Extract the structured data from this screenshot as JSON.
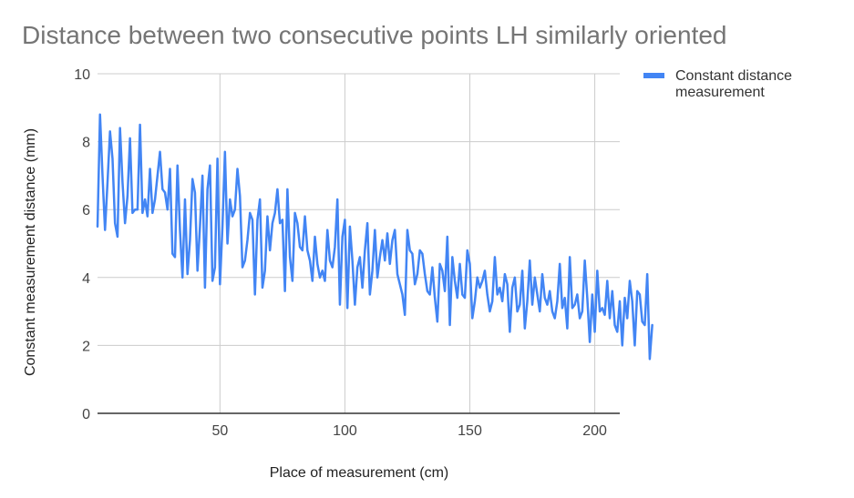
{
  "chart_data": {
    "type": "line",
    "title": "Distance between two consecutive points LH similarly oriented",
    "xlabel": "Place of measurement (cm)",
    "ylabel": "Constant measurement distance (mm)",
    "xlim": [
      1,
      210
    ],
    "ylim": [
      0,
      10
    ],
    "x_ticks": [
      50,
      100,
      150,
      200
    ],
    "y_ticks": [
      0,
      2,
      4,
      6,
      8,
      10
    ],
    "grid": true,
    "legend": "right",
    "series": [
      {
        "name": "Constant distance measurement",
        "color": "#4285f4",
        "x_start": 1,
        "x_step": 1,
        "values": [
          5.5,
          8.8,
          7.0,
          5.4,
          6.8,
          8.3,
          7.5,
          5.6,
          5.2,
          8.4,
          6.8,
          5.6,
          6.4,
          8.1,
          5.9,
          6.0,
          6.0,
          8.5,
          5.9,
          6.3,
          5.8,
          7.2,
          5.9,
          6.3,
          7.0,
          7.7,
          6.6,
          6.5,
          6.0,
          7.2,
          4.7,
          4.6,
          7.3,
          5.4,
          4.0,
          6.3,
          4.1,
          5.1,
          6.9,
          6.5,
          4.2,
          5.5,
          7.0,
          3.7,
          6.6,
          7.3,
          3.9,
          4.3,
          7.5,
          3.8,
          5.5,
          7.7,
          5.0,
          6.3,
          5.8,
          6.0,
          7.2,
          6.4,
          4.3,
          4.5,
          5.1,
          5.9,
          5.7,
          3.5,
          5.7,
          6.3,
          3.7,
          4.2,
          5.8,
          4.8,
          5.6,
          5.9,
          6.6,
          5.6,
          5.7,
          3.6,
          6.6,
          4.6,
          3.9,
          5.9,
          5.6,
          4.9,
          4.8,
          5.8,
          4.8,
          4.5,
          3.9,
          5.2,
          4.4,
          4.0,
          4.2,
          3.9,
          5.4,
          4.5,
          4.3,
          4.9,
          6.3,
          3.2,
          5.2,
          5.7,
          3.1,
          5.5,
          4.5,
          3.2,
          4.3,
          4.6,
          3.7,
          4.8,
          5.6,
          3.5,
          4.2,
          5.4,
          4.0,
          4.6,
          5.1,
          4.5,
          5.3,
          4.4,
          5.1,
          5.4,
          4.1,
          3.8,
          3.5,
          2.9,
          5.4,
          4.8,
          4.7,
          3.8,
          4.1,
          4.8,
          4.7,
          4.1,
          3.6,
          3.5,
          4.3,
          3.4,
          2.7,
          4.4,
          4.2,
          3.6,
          5.2,
          2.6,
          4.6,
          3.9,
          3.4,
          4.4,
          3.5,
          3.4,
          4.8,
          4.4,
          2.8,
          3.3,
          4.0,
          3.7,
          3.9,
          4.2,
          3.5,
          3.0,
          3.3,
          4.6,
          3.5,
          3.7,
          3.3,
          4.1,
          3.8,
          2.4,
          3.7,
          4.0,
          3.0,
          3.2,
          4.2,
          2.5,
          3.3,
          4.5,
          3.2,
          4.0,
          3.5,
          3.0,
          4.1,
          3.4,
          3.2,
          3.6,
          3.0,
          2.8,
          3.3,
          4.4,
          3.1,
          3.4,
          2.5,
          4.6,
          3.1,
          3.2,
          3.5,
          2.8,
          3.0,
          4.5,
          3.4,
          2.1,
          3.5,
          2.4,
          4.2,
          3.0,
          3.1,
          2.9,
          3.9,
          2.8,
          3.6,
          2.6,
          2.4,
          3.3,
          2.0,
          3.4,
          2.8,
          3.9,
          3.3,
          2.0,
          3.6,
          3.5,
          2.7,
          2.6,
          4.1,
          1.6,
          2.6
        ]
      }
    ]
  }
}
